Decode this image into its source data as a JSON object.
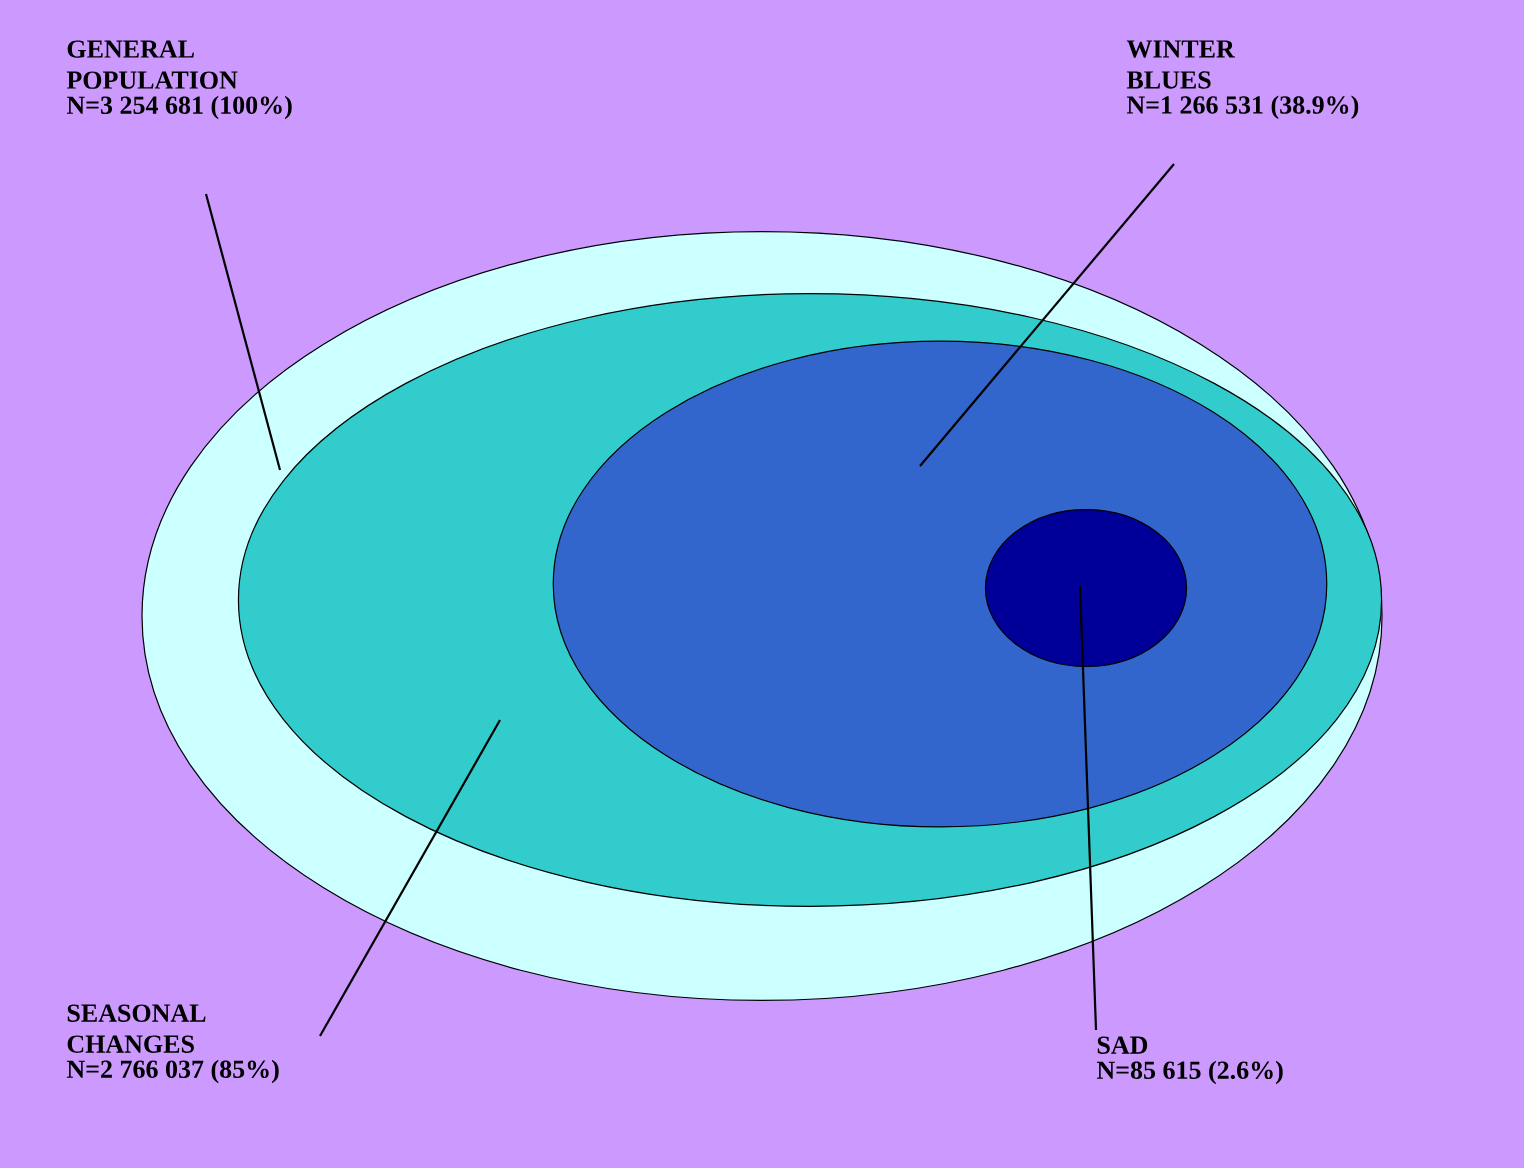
{
  "chart_data": {
    "type": "other",
    "categories": [
      "GENERAL POPULATION",
      "SEASONAL CHANGES",
      "WINTER BLUES",
      "SAD"
    ],
    "values": [
      3254681,
      2766037,
      1266531,
      85615
    ],
    "value_labels": [
      "N=3 254 681 (100%)",
      "N=2 766 037 (85%)",
      "N=1 266 531 (38.9%)",
      "N=85 615 (2.6%)"
    ],
    "colors": [
      "#ccffff",
      "#33cccc",
      "#3366cc",
      "#000099"
    ]
  }
}
